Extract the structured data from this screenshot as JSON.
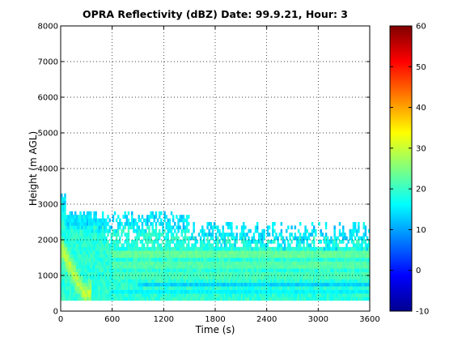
{
  "chart_data": {
    "type": "heatmap",
    "title": "OPRA Reflectivity (dBZ)  Date: 99.9.21, Hour: 3",
    "xlabel": "Time (s)",
    "ylabel": "Height (m AGL)",
    "xlim": [
      0,
      3600
    ],
    "ylim": [
      0,
      8000
    ],
    "x_ticks": [
      0,
      600,
      1200,
      1800,
      2400,
      3000,
      3600
    ],
    "y_ticks": [
      0,
      1000,
      2000,
      3000,
      4000,
      5000,
      6000,
      7000,
      8000
    ],
    "grid": true,
    "colormap": "jet",
    "colorbar": {
      "clim": [
        -10,
        60
      ],
      "ticks": [
        -10,
        0,
        10,
        20,
        30,
        40,
        50,
        60
      ],
      "location": "right"
    },
    "data_extent": {
      "time_range_s": [
        0,
        3600
      ],
      "height_range_m": [
        300,
        3400
      ],
      "min_echo_height_m": 300
    },
    "features": {
      "surface_echo_dbz": 19,
      "sloping_bright_band": {
        "peak_dbz": 30,
        "start_height_m": 1800,
        "start_time_s": 0,
        "end_height_m": 500,
        "end_time_s": 270
      },
      "persistent_layers": [
        {
          "height_m": 1600,
          "dbz": 23,
          "from_time_s": 600
        },
        {
          "height_m": 1300,
          "dbz": 22,
          "from_time_s": 600
        },
        {
          "height_m": 1000,
          "dbz": 21,
          "from_time_s": 600
        },
        {
          "height_m": 750,
          "dbz": 13,
          "from_time_s": 900
        },
        {
          "height_m": 550,
          "dbz": 16,
          "from_time_s": 600
        }
      ],
      "echo_top_m": {
        "early": 2800,
        "late": 2000
      }
    }
  }
}
